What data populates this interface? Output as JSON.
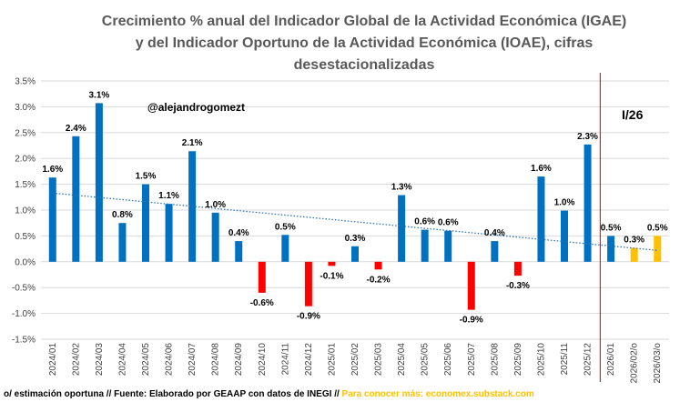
{
  "chart_data": {
    "type": "bar",
    "title_lines": [
      "Crecimiento % anual del Indicador Global de la Actividad Económica (IGAE)",
      "y del Indicador Oportuno de la Actividad Económica (IOAE), cifras",
      "desestacionalizadas"
    ],
    "categories": [
      "2024/01",
      "2024/02",
      "2024/03",
      "2024/04",
      "2024/05",
      "2024/06",
      "2024/07",
      "2024/08",
      "2024/09",
      "2024/10",
      "2024/11",
      "2024/12",
      "2025/01",
      "2025/02",
      "2025/03",
      "2025/04",
      "2025/05",
      "2025/06",
      "2025/07",
      "2025/08",
      "2025/09",
      "2025/10",
      "2025/11",
      "2025/12",
      "2026/01",
      "2026/02/o",
      "2026/03/o"
    ],
    "values": [
      1.63,
      2.43,
      3.07,
      0.75,
      1.5,
      1.12,
      2.14,
      0.95,
      0.4,
      -0.6,
      0.52,
      -0.86,
      -0.08,
      0.3,
      -0.15,
      1.29,
      0.62,
      0.6,
      -0.93,
      0.4,
      -0.27,
      1.65,
      0.99,
      2.27,
      0.5,
      0.27,
      0.5
    ],
    "labels": [
      "1.6%",
      "2.4%",
      "3.1%",
      "0.8%",
      "1.5%",
      "1.1%",
      "2.1%",
      "1.0%",
      "0.4%",
      "-0.6%",
      "0.5%",
      "-0.9%",
      "-0.1%",
      "0.3%",
      "-0.2%",
      "1.3%",
      "0.6%",
      "0.6%",
      "-0.9%",
      "0.4%",
      "-0.3%",
      "1.6%",
      "1.0%",
      "2.3%",
      "0.5%",
      "0.3%",
      "0.5%"
    ],
    "bar_kinds": [
      "pos",
      "pos",
      "pos",
      "pos",
      "pos",
      "pos",
      "pos",
      "pos",
      "pos",
      "neg",
      "pos",
      "neg",
      "neg",
      "pos",
      "neg",
      "pos",
      "pos",
      "pos",
      "neg",
      "pos",
      "neg",
      "pos",
      "pos",
      "pos",
      "pos",
      "est",
      "est"
    ],
    "colors": {
      "pos": "#0070c0",
      "neg": "#ff0000",
      "est": "#ffc000",
      "trend": "#2e75b6",
      "divider": "#c00000"
    },
    "ylim": [
      -1.5,
      3.5
    ],
    "yticks": [
      "-1.5%",
      "-1.0%",
      "-0.5%",
      "0.0%",
      "0.5%",
      "1.0%",
      "1.5%",
      "2.0%",
      "2.5%",
      "3.0%",
      "3.5%"
    ],
    "ytick_values": [
      -1.5,
      -1.0,
      -0.5,
      0.0,
      0.5,
      1.0,
      1.5,
      2.0,
      2.5,
      3.0,
      3.5
    ],
    "trendline": {
      "style": "dotted",
      "start": 1.33,
      "end": 0.22
    },
    "divider_after_category": "2025/12",
    "period_label": "I/26",
    "watermark": "@alejandrogomezt",
    "grid": true
  },
  "footer": {
    "text": "o/ estimación oportuna // Fuente: Elaborado por GEAAP con datos de INEGI // ",
    "link": "Para conocer más: economex.substack.com"
  }
}
